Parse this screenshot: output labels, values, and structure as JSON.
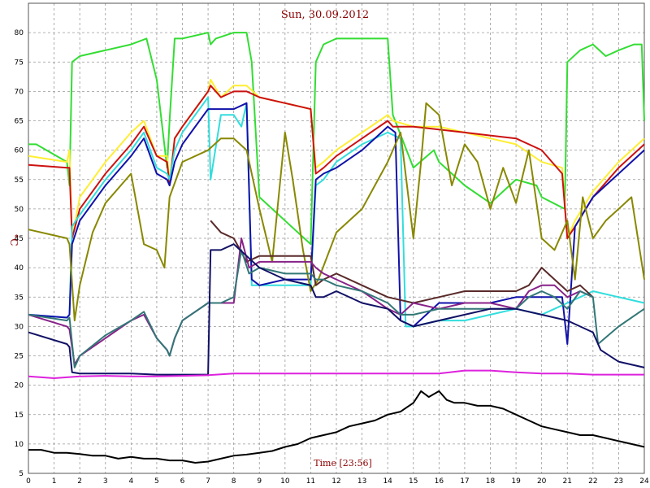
{
  "chart_data": {
    "type": "line",
    "title": "Sun, 30.09.2012",
    "xlabel": "Time [23:56]",
    "ylabel": "°C",
    "xlim": [
      0,
      24
    ],
    "ylim": [
      5,
      85
    ],
    "xticks": [
      "0",
      "1",
      "2",
      "3",
      "4",
      "5",
      "6",
      "7",
      "8",
      "9",
      "10",
      "11",
      "12",
      "13",
      "14",
      "15",
      "16",
      "17",
      "18",
      "19",
      "20",
      "21",
      "22",
      "23",
      "24"
    ],
    "yticks": [
      "5",
      "10",
      "15",
      "20",
      "25",
      "30",
      "35",
      "40",
      "45",
      "50",
      "55",
      "60",
      "65",
      "70",
      "75",
      "80"
    ],
    "grid": true,
    "series": [
      {
        "color": "#33dd33",
        "x": [
          0,
          0.3,
          1.5,
          1.6,
          1.7,
          2,
          3,
          4,
          4.6,
          5.0,
          5.4,
          5.5,
          5.7,
          6,
          7,
          7.1,
          7.3,
          8,
          8.5,
          8.7,
          9,
          10,
          11,
          11.2,
          11.5,
          12,
          13,
          14,
          14.2,
          15,
          15.8,
          16,
          17,
          18,
          19,
          19.8,
          20,
          20.9,
          21,
          21.5,
          22,
          22.5,
          23,
          23.6,
          23.9,
          24
        ],
        "y": [
          61,
          61,
          58,
          54,
          75,
          76,
          77,
          78,
          79,
          72,
          57,
          65,
          79,
          79,
          80,
          78,
          79,
          80,
          80,
          75,
          52,
          48,
          44,
          75,
          78,
          79,
          79,
          79,
          66,
          57,
          60,
          58,
          54,
          51,
          55,
          54,
          52,
          50,
          75,
          77,
          78,
          76,
          77,
          78,
          78,
          65
        ]
      },
      {
        "color": "#ffee33",
        "x": [
          0,
          1.5,
          1.6,
          1.7,
          2,
          3,
          4,
          4.5,
          5,
          5.4,
          5.5,
          5.7,
          6,
          7,
          7.1,
          7.5,
          8,
          8.5,
          9,
          10,
          11,
          11.2,
          11.5,
          12,
          13,
          14,
          14.2,
          15,
          16,
          17,
          18,
          19,
          20,
          20.8,
          21,
          21.3,
          22,
          23,
          24
        ],
        "y": [
          59,
          58,
          60,
          45,
          52,
          58,
          63,
          65,
          59,
          59,
          55,
          62,
          64,
          70,
          72,
          69,
          71,
          71,
          69,
          68,
          67,
          57,
          58,
          60,
          63,
          66,
          65,
          64,
          64,
          63,
          62,
          61,
          58,
          57,
          45,
          48,
          53,
          58,
          62
        ]
      },
      {
        "color": "#cc1111",
        "x": [
          0,
          1.5,
          1.6,
          1.7,
          2,
          3,
          4,
          4.5,
          5,
          5.4,
          5.5,
          5.7,
          6,
          7,
          7.1,
          7.5,
          8,
          8.5,
          9,
          10,
          11,
          11.2,
          11.5,
          12,
          13,
          14,
          14.2,
          15,
          16,
          17,
          18,
          19,
          20,
          20.8,
          21,
          21.3,
          22,
          23,
          24
        ],
        "y": [
          57.5,
          57,
          57,
          45,
          50,
          56,
          61,
          64,
          59,
          58,
          54,
          62,
          64,
          70,
          71,
          69,
          70,
          70,
          69,
          68,
          67,
          56,
          57,
          59,
          62,
          65,
          64,
          64,
          63.5,
          63,
          62.5,
          62,
          60,
          56,
          45,
          47,
          52,
          57,
          61
        ]
      },
      {
        "color": "#33dddd",
        "x": [
          0,
          1.5,
          1.6,
          1.7,
          2,
          3,
          4,
          4.5,
          5,
          5.4,
          5.5,
          5.7,
          6,
          7,
          7.1,
          7.5,
          8,
          8.3,
          8.5,
          8.7,
          9,
          10,
          11,
          11.2,
          11.5,
          12,
          13,
          14,
          14.5,
          14.7,
          15,
          16,
          17,
          18,
          19,
          20,
          20.5,
          21,
          21.5,
          22,
          23,
          24
        ],
        "y": [
          32,
          31.5,
          32,
          47,
          49,
          55,
          60,
          63,
          57,
          56,
          55,
          60,
          63,
          69,
          55,
          66,
          66,
          64,
          68,
          37,
          37,
          37,
          37,
          54,
          55,
          58,
          61,
          63,
          62,
          30,
          30,
          31,
          31,
          32,
          33,
          32,
          33,
          34,
          35,
          36,
          35,
          34
        ]
      },
      {
        "color": "#1111aa",
        "x": [
          0,
          1.5,
          1.6,
          1.7,
          2,
          3,
          4,
          4.5,
          5,
          5.4,
          5.5,
          5.7,
          6,
          7,
          7.5,
          8,
          8.5,
          8.7,
          9,
          10,
          11,
          11.2,
          11.5,
          12,
          13,
          14,
          14.3,
          14.5,
          15,
          16,
          17,
          18,
          19,
          20,
          20.8,
          21,
          21.3,
          22,
          23,
          24
        ],
        "y": [
          32,
          31.5,
          32,
          44,
          48,
          54,
          59,
          62,
          56,
          55,
          54,
          58,
          61,
          67,
          67,
          67,
          68,
          38,
          37,
          38,
          38,
          55,
          56,
          57,
          60,
          64,
          63,
          31,
          30,
          34,
          34,
          34,
          35,
          35,
          35,
          27,
          47,
          52,
          56,
          60
        ]
      },
      {
        "color": "#888800",
        "x": [
          0,
          1.5,
          1.6,
          1.8,
          2,
          2.5,
          3,
          4,
          4.5,
          5,
          5.3,
          5.5,
          6,
          7,
          7.5,
          8,
          8.5,
          9,
          9.5,
          10,
          10.3,
          10.7,
          11,
          11.3,
          12,
          13,
          14,
          14.5,
          15,
          15.3,
          15.5,
          16,
          16.5,
          17,
          17.5,
          18,
          18.5,
          19,
          19.5,
          20,
          20.5,
          21,
          21.3,
          21.6,
          22,
          22.5,
          23,
          23.5,
          24
        ],
        "y": [
          46.5,
          45,
          44,
          31,
          37,
          46,
          51,
          56,
          44,
          43,
          40,
          52,
          58,
          60,
          62,
          62,
          60,
          50,
          41,
          63,
          55,
          43,
          36,
          38,
          46,
          50,
          58,
          63,
          45,
          58,
          68,
          66,
          54,
          61,
          58,
          50,
          57,
          51,
          60,
          45,
          43,
          48,
          38,
          52,
          45,
          48,
          50,
          52,
          38
        ]
      },
      {
        "color": "#5a2a2a",
        "x": [
          7.1,
          7.5,
          8,
          8.5,
          9,
          10,
          11,
          11.2,
          11.5,
          12,
          13,
          14,
          15,
          16,
          17,
          18,
          19,
          19.5,
          20,
          20.5,
          21,
          21.5,
          22
        ],
        "y": [
          48,
          46,
          45,
          41,
          42,
          42,
          42,
          37,
          38,
          39,
          37,
          35,
          34,
          35,
          36,
          36,
          36,
          37,
          40,
          38,
          36,
          37,
          35
        ]
      },
      {
        "color": "#882288",
        "x": [
          0,
          1.5,
          1.6,
          1.8,
          2,
          3,
          4,
          4.5,
          5,
          5.4,
          5.5,
          5.7,
          6,
          7,
          7.5,
          8,
          8.3,
          8.6,
          9,
          10,
          11,
          11.2,
          11.5,
          12,
          13,
          14,
          14.5,
          15,
          16,
          17,
          18,
          19,
          19.5,
          20,
          20.5,
          21,
          21.5,
          22
        ],
        "y": [
          32,
          30,
          29.5,
          23.5,
          25,
          28,
          31,
          32,
          28,
          26,
          25,
          28,
          31,
          34,
          34,
          34,
          45,
          40,
          41,
          41,
          41,
          40,
          39,
          38,
          36,
          33,
          32,
          34,
          33,
          34,
          34,
          33,
          36,
          37,
          37,
          35,
          36,
          35
        ]
      },
      {
        "color": "#337777",
        "x": [
          0,
          1.5,
          1.6,
          1.8,
          2,
          3,
          4,
          4.5,
          5,
          5.4,
          5.5,
          5.7,
          6,
          7,
          7.5,
          8,
          8.3,
          8.6,
          9,
          10,
          11,
          11.2,
          11.5,
          12,
          13,
          14,
          14.5,
          15,
          16,
          17,
          18,
          19,
          19.5,
          20,
          20.5,
          21,
          21.5,
          22,
          22.2,
          23,
          24
        ],
        "y": [
          32,
          31,
          31.5,
          23,
          25,
          28.5,
          31,
          32.5,
          28,
          26,
          25,
          28,
          31,
          34,
          34,
          35,
          43,
          39,
          40,
          39,
          39,
          38,
          38,
          37,
          36,
          34,
          32,
          32,
          33,
          33,
          33,
          33,
          35,
          36,
          35,
          33,
          36,
          35,
          27,
          30,
          33
        ]
      },
      {
        "color": "#111166",
        "x": [
          0,
          1.5,
          1.6,
          1.7,
          2,
          3,
          4,
          5,
          6,
          7,
          7.1,
          7.5,
          8,
          8.5,
          9,
          10,
          11,
          11.2,
          11.5,
          12,
          13,
          14,
          14.5,
          15,
          16,
          17,
          18,
          19,
          20,
          21,
          21.5,
          22,
          22.3,
          23,
          24
        ],
        "y": [
          29,
          27,
          26.5,
          22.2,
          22,
          22,
          22,
          21.8,
          21.8,
          21.8,
          43,
          43,
          44,
          42,
          40,
          38,
          37,
          35,
          35,
          36,
          34,
          33,
          31,
          30,
          31,
          32,
          33,
          33,
          32,
          31,
          30,
          29,
          26,
          24,
          23
        ]
      },
      {
        "color": "#dd22dd",
        "x": [
          0,
          1,
          2,
          3,
          4,
          5,
          6,
          7,
          8,
          9,
          10,
          11,
          12,
          13,
          14,
          15,
          16,
          17,
          18,
          19,
          20,
          21,
          22,
          23,
          24
        ],
        "y": [
          21.5,
          21.2,
          21.5,
          21.6,
          21.5,
          21.5,
          21.6,
          21.7,
          22,
          22,
          22,
          22,
          22,
          22,
          22,
          22,
          22,
          22.5,
          22.5,
          22.2,
          22,
          22,
          21.8,
          21.8,
          21.8
        ]
      },
      {
        "color": "#000000",
        "x": [
          0,
          0.5,
          1,
          1.5,
          2,
          2.5,
          3,
          3.5,
          4,
          4.5,
          5,
          5.5,
          6,
          6.5,
          7,
          7.5,
          8,
          8.5,
          9,
          9.5,
          10,
          10.5,
          11,
          11.5,
          12,
          12.5,
          13,
          13.5,
          14,
          14.5,
          15,
          15.3,
          15.6,
          16,
          16.3,
          16.6,
          17,
          17.5,
          18,
          18.5,
          19,
          19.5,
          20,
          20.5,
          21,
          21.5,
          22,
          22.5,
          23,
          23.5,
          24
        ],
        "y": [
          9,
          9,
          8.5,
          8.5,
          8.3,
          8,
          8,
          7.5,
          7.8,
          7.5,
          7.5,
          7.2,
          7.2,
          6.8,
          7,
          7.5,
          8,
          8.2,
          8.5,
          8.8,
          9.5,
          10,
          11,
          11.5,
          12,
          13,
          13.5,
          14,
          15,
          15.5,
          17,
          19,
          18,
          19,
          17.5,
          17,
          17,
          16.5,
          16.5,
          16,
          15,
          14,
          13,
          12.5,
          12,
          11.5,
          11.5,
          11,
          10.5,
          10,
          9.5
        ]
      }
    ]
  }
}
